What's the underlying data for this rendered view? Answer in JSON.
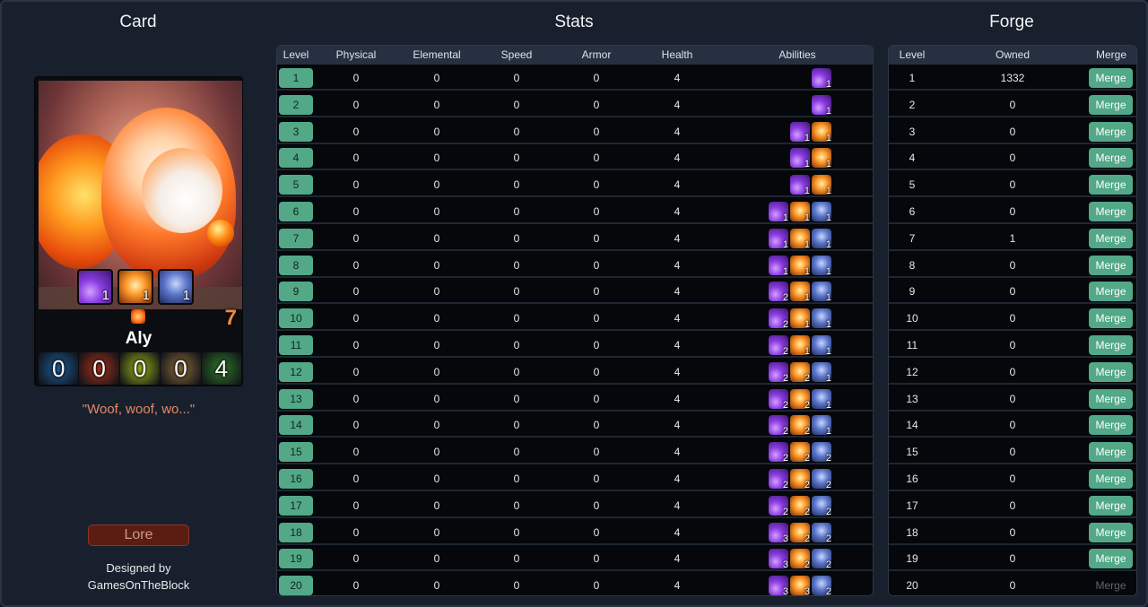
{
  "headers": {
    "card": "Card",
    "stats": "Stats",
    "forge": "Forge"
  },
  "card": {
    "name": "Aly",
    "level": "7",
    "quote": "\"Woof, woof, wo...\"",
    "lore_label": "Lore",
    "designed_by": "Designed by",
    "designer": "GamesOnTheBlock",
    "abilities": [
      {
        "icon": "purple-slash-icon",
        "level": "1"
      },
      {
        "icon": "fire-burst-icon",
        "level": "1"
      },
      {
        "icon": "blue-portrait-icon",
        "level": "1"
      }
    ],
    "stats": [
      "0",
      "0",
      "0",
      "0",
      "4"
    ],
    "stat_colors": [
      "#1e5c9a",
      "#a8301a",
      "#9ab21a",
      "#8a6a3a",
      "#2f7a2a"
    ]
  },
  "stats_table": {
    "columns": [
      "Level",
      "Physical",
      "Elemental",
      "Speed",
      "Armor",
      "Health",
      "Abilities"
    ],
    "rows": [
      {
        "level": "1",
        "physical": "0",
        "elemental": "0",
        "speed": "0",
        "armor": "0",
        "health": "4",
        "abilities": [
          "1"
        ]
      },
      {
        "level": "2",
        "physical": "0",
        "elemental": "0",
        "speed": "0",
        "armor": "0",
        "health": "4",
        "abilities": [
          "1"
        ]
      },
      {
        "level": "3",
        "physical": "0",
        "elemental": "0",
        "speed": "0",
        "armor": "0",
        "health": "4",
        "abilities": [
          "1",
          "1"
        ]
      },
      {
        "level": "4",
        "physical": "0",
        "elemental": "0",
        "speed": "0",
        "armor": "0",
        "health": "4",
        "abilities": [
          "1",
          "1"
        ]
      },
      {
        "level": "5",
        "physical": "0",
        "elemental": "0",
        "speed": "0",
        "armor": "0",
        "health": "4",
        "abilities": [
          "1",
          "1"
        ]
      },
      {
        "level": "6",
        "physical": "0",
        "elemental": "0",
        "speed": "0",
        "armor": "0",
        "health": "4",
        "abilities": [
          "1",
          "1",
          "1"
        ]
      },
      {
        "level": "7",
        "physical": "0",
        "elemental": "0",
        "speed": "0",
        "armor": "0",
        "health": "4",
        "abilities": [
          "1",
          "1",
          "1"
        ]
      },
      {
        "level": "8",
        "physical": "0",
        "elemental": "0",
        "speed": "0",
        "armor": "0",
        "health": "4",
        "abilities": [
          "1",
          "1",
          "1"
        ]
      },
      {
        "level": "9",
        "physical": "0",
        "elemental": "0",
        "speed": "0",
        "armor": "0",
        "health": "4",
        "abilities": [
          "2",
          "1",
          "1"
        ]
      },
      {
        "level": "10",
        "physical": "0",
        "elemental": "0",
        "speed": "0",
        "armor": "0",
        "health": "4",
        "abilities": [
          "2",
          "1",
          "1"
        ]
      },
      {
        "level": "11",
        "physical": "0",
        "elemental": "0",
        "speed": "0",
        "armor": "0",
        "health": "4",
        "abilities": [
          "2",
          "1",
          "1"
        ]
      },
      {
        "level": "12",
        "physical": "0",
        "elemental": "0",
        "speed": "0",
        "armor": "0",
        "health": "4",
        "abilities": [
          "2",
          "2",
          "1"
        ]
      },
      {
        "level": "13",
        "physical": "0",
        "elemental": "0",
        "speed": "0",
        "armor": "0",
        "health": "4",
        "abilities": [
          "2",
          "2",
          "1"
        ]
      },
      {
        "level": "14",
        "physical": "0",
        "elemental": "0",
        "speed": "0",
        "armor": "0",
        "health": "4",
        "abilities": [
          "2",
          "2",
          "1"
        ]
      },
      {
        "level": "15",
        "physical": "0",
        "elemental": "0",
        "speed": "0",
        "armor": "0",
        "health": "4",
        "abilities": [
          "2",
          "2",
          "2"
        ]
      },
      {
        "level": "16",
        "physical": "0",
        "elemental": "0",
        "speed": "0",
        "armor": "0",
        "health": "4",
        "abilities": [
          "2",
          "2",
          "2"
        ]
      },
      {
        "level": "17",
        "physical": "0",
        "elemental": "0",
        "speed": "0",
        "armor": "0",
        "health": "4",
        "abilities": [
          "2",
          "2",
          "2"
        ]
      },
      {
        "level": "18",
        "physical": "0",
        "elemental": "0",
        "speed": "0",
        "armor": "0",
        "health": "4",
        "abilities": [
          "3",
          "2",
          "2"
        ]
      },
      {
        "level": "19",
        "physical": "0",
        "elemental": "0",
        "speed": "0",
        "armor": "0",
        "health": "4",
        "abilities": [
          "3",
          "2",
          "2"
        ]
      },
      {
        "level": "20",
        "physical": "0",
        "elemental": "0",
        "speed": "0",
        "armor": "0",
        "health": "4",
        "abilities": [
          "3",
          "3",
          "2"
        ]
      }
    ]
  },
  "forge_table": {
    "columns": [
      "Level",
      "Owned",
      "Merge"
    ],
    "merge_label": "Merge",
    "rows": [
      {
        "level": "1",
        "owned": "1332",
        "merge_enabled": true
      },
      {
        "level": "2",
        "owned": "0",
        "merge_enabled": true
      },
      {
        "level": "3",
        "owned": "0",
        "merge_enabled": true
      },
      {
        "level": "4",
        "owned": "0",
        "merge_enabled": true
      },
      {
        "level": "5",
        "owned": "0",
        "merge_enabled": true
      },
      {
        "level": "6",
        "owned": "0",
        "merge_enabled": true
      },
      {
        "level": "7",
        "owned": "1",
        "merge_enabled": true
      },
      {
        "level": "8",
        "owned": "0",
        "merge_enabled": true
      },
      {
        "level": "9",
        "owned": "0",
        "merge_enabled": true
      },
      {
        "level": "10",
        "owned": "0",
        "merge_enabled": true
      },
      {
        "level": "11",
        "owned": "0",
        "merge_enabled": true
      },
      {
        "level": "12",
        "owned": "0",
        "merge_enabled": true
      },
      {
        "level": "13",
        "owned": "0",
        "merge_enabled": true
      },
      {
        "level": "14",
        "owned": "0",
        "merge_enabled": true
      },
      {
        "level": "15",
        "owned": "0",
        "merge_enabled": true
      },
      {
        "level": "16",
        "owned": "0",
        "merge_enabled": true
      },
      {
        "level": "17",
        "owned": "0",
        "merge_enabled": true
      },
      {
        "level": "18",
        "owned": "0",
        "merge_enabled": true
      },
      {
        "level": "19",
        "owned": "0",
        "merge_enabled": true
      },
      {
        "level": "20",
        "owned": "0",
        "merge_enabled": false
      }
    ]
  },
  "ability_icons": [
    "purple-slash-icon",
    "fire-burst-icon",
    "blue-portrait-icon"
  ],
  "accent_color": "#52a887"
}
